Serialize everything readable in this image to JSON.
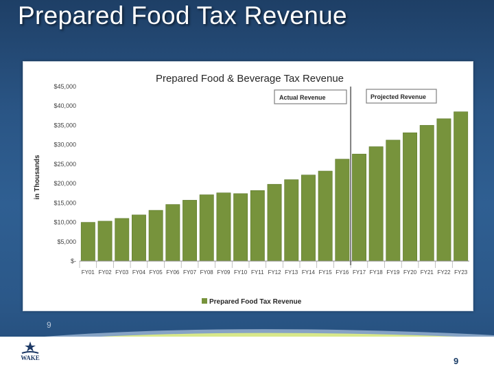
{
  "slide": {
    "title": "Prepared Food Tax Revenue",
    "small_number": "9",
    "page_number": "9"
  },
  "logo": {
    "text": "WAKE"
  },
  "colors": {
    "bar": "#77933c",
    "bar_edge": "#5f7a2e",
    "divider": "#7f7f7f",
    "title_text": "#ffffff"
  },
  "chart_data": {
    "type": "bar",
    "title": "Prepared Food & Beverage Tax Revenue",
    "ylabel": "in Thousands",
    "xlabel": "",
    "ylim": [
      0,
      45000
    ],
    "yticks": [
      0,
      5000,
      10000,
      15000,
      20000,
      25000,
      30000,
      35000,
      40000,
      45000
    ],
    "ytick_labels": [
      "$-",
      "$5,000",
      "$10,000",
      "$15,000",
      "$20,000",
      "$25,000",
      "$30,000",
      "$35,000",
      "$40,000",
      "$45,000"
    ],
    "categories": [
      "FY01",
      "FY02",
      "FY03",
      "FY04",
      "FY05",
      "FY06",
      "FY07",
      "FY08",
      "FY09",
      "FY10",
      "FY11",
      "FY12",
      "FY13",
      "FY14",
      "FY15",
      "FY16",
      "FY17",
      "FY18",
      "FY19",
      "FY20",
      "FY21",
      "FY22",
      "FY23"
    ],
    "series": [
      {
        "name": "Prepared Food Tax Revenue",
        "values": [
          10000,
          10300,
          11000,
          11900,
          13100,
          14600,
          15700,
          17100,
          17600,
          17400,
          18200,
          19800,
          21000,
          22200,
          23200,
          26300,
          27600,
          29500,
          31200,
          33100,
          35000,
          36700,
          38500
        ]
      }
    ],
    "annotations": [
      "Actual Revenue",
      "Projected Revenue"
    ],
    "divider_after": "FY16",
    "legend": "bottom-center",
    "grid": false
  }
}
